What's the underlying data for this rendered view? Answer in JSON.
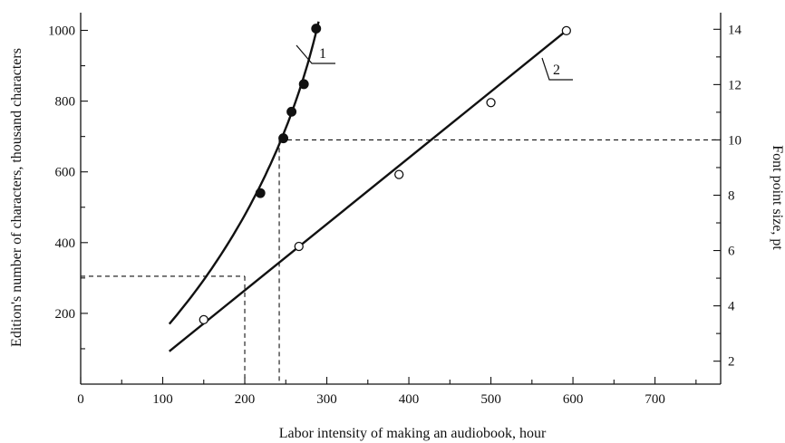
{
  "chart_data": {
    "type": "scatter",
    "title": "",
    "xlabel": "Labor intensity of making an audiobook, hour",
    "ylabel_left": "Edition's number of characters, thousand characters",
    "ylabel_right": "Font point size, pt",
    "xlim": [
      0,
      780
    ],
    "ylim_left": [
      0,
      1050
    ],
    "ylim_right": [
      1.17,
      14.6
    ],
    "x_ticks": [
      0,
      100,
      200,
      300,
      400,
      500,
      600,
      700
    ],
    "y_left_ticks": [
      200,
      400,
      600,
      800,
      1000
    ],
    "y_right_ticks": [
      2,
      4,
      6,
      8,
      10,
      12,
      14
    ],
    "grid": false,
    "series": [
      {
        "name": "1",
        "axis": "left",
        "marker": "filled-circle",
        "points": [
          {
            "x": 219,
            "y": 540
          },
          {
            "x": 247,
            "y": 695
          },
          {
            "x": 257,
            "y": 770
          },
          {
            "x": 272,
            "y": 848
          },
          {
            "x": 287,
            "y": 1005
          }
        ]
      },
      {
        "name": "2",
        "axis": "right",
        "marker": "open-circle",
        "points": [
          {
            "x": 150,
            "y": 3.5
          },
          {
            "x": 266,
            "y": 6.15
          },
          {
            "x": 388,
            "y": 8.75
          },
          {
            "x": 500,
            "y": 11.35
          },
          {
            "x": 592,
            "y": 13.95
          }
        ]
      }
    ],
    "guides": [
      {
        "x": 200,
        "y": 305,
        "axis": "left"
      },
      {
        "x": 242,
        "y": 10,
        "axis": "right"
      }
    ]
  }
}
